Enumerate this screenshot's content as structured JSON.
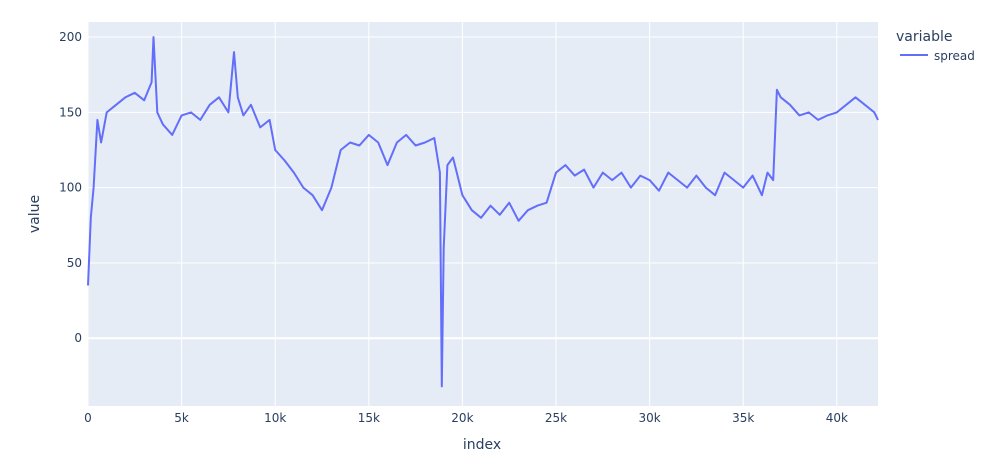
{
  "chart_data": {
    "type": "line",
    "title": "",
    "xlabel": "index",
    "ylabel": "value",
    "xlim": [
      0,
      42200
    ],
    "ylim": [
      -45,
      210
    ],
    "xticks": [
      0,
      5000,
      10000,
      15000,
      20000,
      25000,
      30000,
      35000,
      40000
    ],
    "xtick_labels": [
      "0",
      "5k",
      "10k",
      "15k",
      "20k",
      "25k",
      "30k",
      "35k",
      "40k"
    ],
    "yticks": [
      0,
      50,
      100,
      150,
      200
    ],
    "ytick_labels": [
      "0",
      "50",
      "100",
      "150",
      "200"
    ],
    "grid": true,
    "legend": {
      "title": "variable",
      "placement": "top-right",
      "entries": [
        "spread"
      ]
    },
    "colors": {
      "plot_bg": "#e5ecf6",
      "grid": "#ffffff",
      "series": "#636efa",
      "text": "#2a3f5f"
    },
    "series": [
      {
        "name": "spread",
        "x": [
          0,
          150,
          300,
          500,
          700,
          1000,
          1500,
          2000,
          2500,
          3000,
          3400,
          3500,
          3700,
          4000,
          4500,
          5000,
          5500,
          6000,
          6500,
          7000,
          7500,
          7800,
          8000,
          8300,
          8700,
          9200,
          9700,
          10000,
          10500,
          11000,
          11500,
          12000,
          12500,
          13000,
          13500,
          14000,
          14500,
          15000,
          15500,
          16000,
          16500,
          17000,
          17500,
          18000,
          18500,
          18800,
          18900,
          19000,
          19200,
          19500,
          20000,
          20500,
          21000,
          21500,
          22000,
          22500,
          23000,
          23500,
          24000,
          24500,
          25000,
          25500,
          26000,
          26500,
          27000,
          27500,
          28000,
          28500,
          29000,
          29500,
          30000,
          30500,
          31000,
          31500,
          32000,
          32500,
          33000,
          33500,
          34000,
          34500,
          35000,
          35500,
          36000,
          36300,
          36600,
          36800,
          37000,
          37500,
          38000,
          38500,
          39000,
          39500,
          40000,
          40500,
          41000,
          41500,
          42000,
          42200
        ],
        "values": [
          35,
          80,
          100,
          145,
          130,
          150,
          155,
          160,
          163,
          158,
          170,
          200,
          150,
          142,
          135,
          148,
          150,
          145,
          155,
          160,
          150,
          190,
          160,
          148,
          155,
          140,
          145,
          125,
          118,
          110,
          100,
          95,
          85,
          100,
          125,
          130,
          128,
          135,
          130,
          115,
          130,
          135,
          128,
          130,
          133,
          110,
          -32,
          60,
          115,
          120,
          95,
          85,
          80,
          88,
          82,
          90,
          78,
          85,
          88,
          90,
          110,
          115,
          108,
          112,
          100,
          110,
          105,
          110,
          100,
          108,
          105,
          98,
          110,
          105,
          100,
          108,
          100,
          95,
          110,
          105,
          100,
          108,
          95,
          110,
          105,
          165,
          160,
          155,
          148,
          150,
          145,
          148,
          150,
          155,
          160,
          155,
          150,
          145
        ]
      }
    ]
  }
}
